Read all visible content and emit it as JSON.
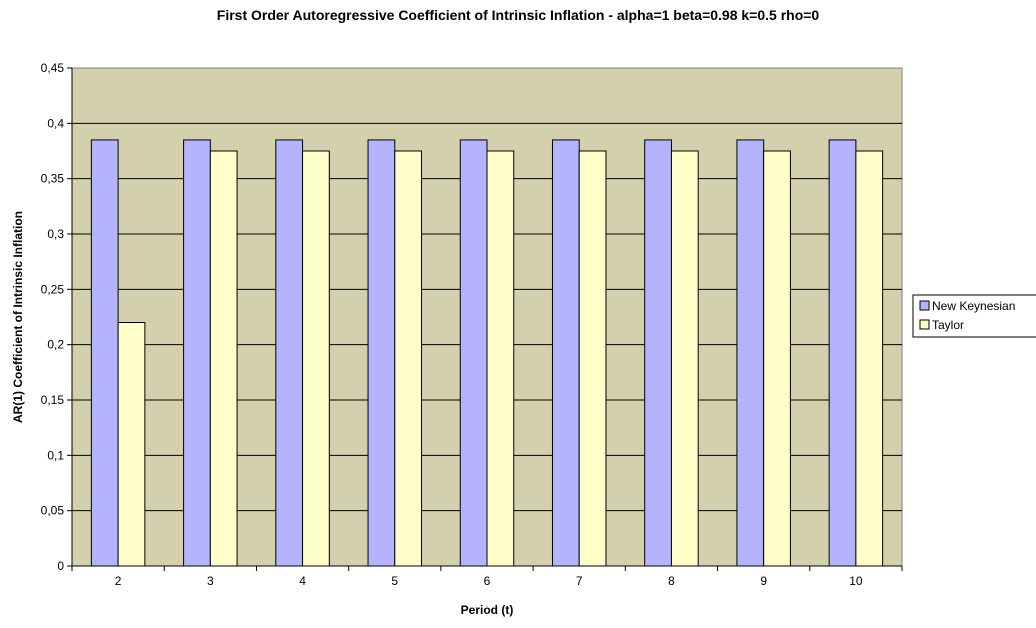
{
  "chart_data": {
    "type": "bar",
    "title": "First Order Autoregressive Coefficient of Intrinsic Inflation - alpha=1 beta=0.98 k=0.5 rho=0",
    "xlabel": "Period (t)",
    "ylabel": "AR(1) Coefficient of Intrinsic Inflation",
    "categories": [
      "2",
      "3",
      "4",
      "5",
      "6",
      "7",
      "8",
      "9",
      "10"
    ],
    "series": [
      {
        "name": "New Keynesian",
        "color": "#b3b3fe",
        "values": [
          0.385,
          0.385,
          0.385,
          0.385,
          0.385,
          0.385,
          0.385,
          0.385,
          0.385
        ]
      },
      {
        "name": "Taylor",
        "color": "#fefec8",
        "values": [
          0.22,
          0.375,
          0.375,
          0.375,
          0.375,
          0.375,
          0.375,
          0.375,
          0.375
        ]
      }
    ],
    "ylim": [
      0,
      0.45
    ],
    "yticks": [
      "0",
      "0,05",
      "0,1",
      "0,15",
      "0,2",
      "0,25",
      "0,3",
      "0,35",
      "0,4",
      "0,45"
    ],
    "grid": true,
    "plot_background": "#d3d0ae",
    "legend_position": "right"
  }
}
